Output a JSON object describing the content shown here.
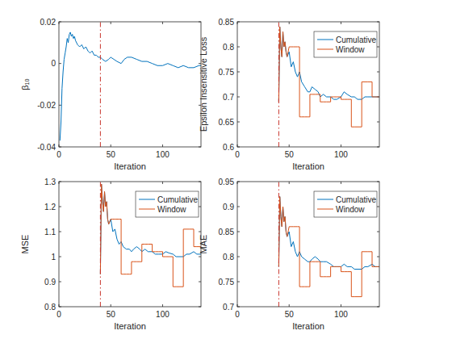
{
  "chart_data": [
    {
      "type": "line",
      "x_label": "Iteration",
      "y_label": "β₁₀",
      "x": [
        1,
        2,
        3,
        4,
        5,
        6,
        7,
        8,
        9,
        10,
        11,
        12,
        13,
        14,
        15,
        16,
        18,
        20,
        22,
        24,
        26,
        28,
        30,
        32,
        34,
        36,
        38,
        40,
        42,
        45,
        48,
        50,
        53,
        56,
        60,
        63,
        66,
        70,
        75,
        80,
        85,
        90,
        95,
        100,
        105,
        110,
        115,
        120,
        125,
        130,
        135,
        137
      ],
      "series": [
        {
          "color": "#0072bd",
          "values": [
            -0.037,
            -0.028,
            -0.012,
            -0.004,
            0.002,
            0.005,
            0.008,
            0.012,
            0.01,
            0.014,
            0.015,
            0.013,
            0.014,
            0.012,
            0.013,
            0.011,
            0.009,
            0.008,
            0.009,
            0.007,
            0.008,
            0.006,
            0.005,
            0.006,
            0.004,
            0.004,
            0.003,
            0.003,
            0.002,
            0.001,
            0.002,
            0.003,
            0.002,
            0.001,
            0.0,
            0.002,
            0.003,
            0.003,
            0.002,
            0.001,
            0.001,
            0.0,
            -0.001,
            -0.001,
            0.0,
            -0.001,
            -0.002,
            -0.001,
            -0.002,
            -0.002,
            -0.001,
            -0.001
          ]
        }
      ],
      "xlim": [
        0,
        137
      ],
      "ylim": [
        -0.04,
        0.02
      ],
      "xticks": [
        0,
        50,
        100
      ],
      "yticks": [
        -0.04,
        -0.02,
        0,
        0.02
      ],
      "xline": {
        "value": 40,
        "color": "#c8342b",
        "line_style": "dash-dot"
      }
    },
    {
      "type": "line",
      "x_label": "Iteration",
      "y_label": "Epsilon Insensitive Loss",
      "x": [
        40,
        41,
        42,
        43,
        44,
        45,
        46,
        47,
        48,
        50,
        52,
        54,
        56,
        58,
        60,
        60,
        62,
        65,
        68,
        70,
        70,
        72,
        75,
        78,
        80,
        80,
        83,
        86,
        90,
        90,
        93,
        96,
        100,
        100,
        103,
        106,
        110,
        110,
        113,
        116,
        120,
        120,
        123,
        126,
        130,
        130,
        133,
        137
      ],
      "series": [
        {
          "name": "Cumulative",
          "color": "#0072bd",
          "values": [
            0.69,
            0.84,
            0.8,
            0.78,
            0.83,
            0.8,
            0.81,
            0.79,
            0.78,
            0.79,
            0.76,
            0.77,
            0.75,
            0.74,
            0.75,
            0.75,
            0.73,
            0.72,
            0.71,
            0.71,
            0.71,
            0.72,
            0.715,
            0.71,
            0.7,
            0.7,
            0.705,
            0.7,
            0.7,
            0.7,
            0.695,
            0.695,
            0.7,
            0.7,
            0.71,
            0.705,
            0.7,
            0.7,
            0.7,
            0.695,
            0.695,
            0.695,
            0.7,
            0.7,
            0.7,
            0.7,
            0.7,
            0.7
          ]
        },
        {
          "name": "Window",
          "color": "#d95319",
          "values": [
            0.69,
            0.84,
            0.8,
            0.78,
            0.83,
            0.8,
            0.81,
            0.79,
            0.78,
            0.8,
            0.8,
            0.8,
            0.8,
            0.8,
            0.8,
            0.66,
            0.66,
            0.66,
            0.66,
            0.66,
            0.705,
            0.705,
            0.705,
            0.705,
            0.705,
            0.69,
            0.69,
            0.69,
            0.69,
            0.7,
            0.7,
            0.7,
            0.7,
            0.695,
            0.695,
            0.695,
            0.695,
            0.64,
            0.64,
            0.64,
            0.64,
            0.73,
            0.73,
            0.73,
            0.73,
            0.7,
            0.7,
            0.7
          ]
        }
      ],
      "xlim": [
        0,
        137
      ],
      "ylim": [
        0.6,
        0.85
      ],
      "xticks": [
        0,
        50,
        100
      ],
      "yticks": [
        0.6,
        0.65,
        0.7,
        0.75,
        0.8,
        0.85
      ],
      "legend": "northeast",
      "xline": {
        "value": 40,
        "color": "#c8342b",
        "line_style": "dash-dot"
      }
    },
    {
      "type": "line",
      "x_label": "Iteration",
      "y_label": "MSE",
      "x": [
        40,
        41,
        42,
        43,
        44,
        45,
        46,
        47,
        48,
        50,
        52,
        54,
        56,
        58,
        60,
        60,
        62,
        65,
        68,
        70,
        70,
        72,
        75,
        78,
        80,
        80,
        83,
        86,
        90,
        90,
        93,
        96,
        100,
        100,
        103,
        106,
        110,
        110,
        113,
        116,
        120,
        120,
        123,
        126,
        130,
        130,
        133,
        137
      ],
      "series": [
        {
          "name": "Cumulative",
          "color": "#0072bd",
          "values": [
            0.93,
            1.29,
            1.22,
            1.18,
            1.26,
            1.2,
            1.22,
            1.15,
            1.13,
            1.15,
            1.1,
            1.11,
            1.07,
            1.05,
            1.06,
            1.06,
            1.04,
            1.03,
            1.03,
            1.02,
            1.02,
            1.03,
            1.04,
            1.03,
            1.02,
            1.02,
            1.03,
            1.02,
            1.02,
            1.02,
            1.01,
            1.01,
            1.01,
            1.01,
            1.02,
            1.015,
            1.01,
            1.01,
            1.0,
            1.0,
            1.0,
            1.0,
            1.01,
            1.01,
            1.02,
            1.02,
            1.01,
            1.01
          ]
        },
        {
          "name": "Window",
          "color": "#d95319",
          "values": [
            0.93,
            1.29,
            1.22,
            1.18,
            1.26,
            1.2,
            1.22,
            1.15,
            1.13,
            1.15,
            1.15,
            1.15,
            1.15,
            1.15,
            1.15,
            0.93,
            0.93,
            0.93,
            0.93,
            0.93,
            0.98,
            0.98,
            0.98,
            0.98,
            0.98,
            1.05,
            1.05,
            1.05,
            1.05,
            1.02,
            1.02,
            1.02,
            1.02,
            1.0,
            1.0,
            1.0,
            1.0,
            0.88,
            0.88,
            0.88,
            0.88,
            1.11,
            1.11,
            1.11,
            1.11,
            1.04,
            1.04,
            1.04
          ]
        }
      ],
      "xlim": [
        0,
        137
      ],
      "ylim": [
        0.8,
        1.3
      ],
      "xticks": [
        0,
        50,
        100
      ],
      "yticks": [
        0.8,
        0.9,
        1,
        1.1,
        1.2,
        1.3
      ],
      "legend": "northeast",
      "xline": {
        "value": 40,
        "color": "#c8342b",
        "line_style": "dash-dot"
      }
    },
    {
      "type": "line",
      "x_label": "Iteration",
      "y_label": "MAE",
      "x": [
        40,
        41,
        42,
        43,
        44,
        45,
        46,
        47,
        48,
        50,
        52,
        54,
        56,
        58,
        60,
        60,
        62,
        65,
        68,
        70,
        70,
        72,
        75,
        78,
        80,
        80,
        83,
        86,
        90,
        90,
        93,
        96,
        100,
        100,
        103,
        106,
        110,
        110,
        113,
        116,
        120,
        120,
        123,
        126,
        130,
        130,
        133,
        137
      ],
      "series": [
        {
          "name": "Cumulative",
          "color": "#0072bd",
          "values": [
            0.78,
            0.92,
            0.88,
            0.86,
            0.9,
            0.87,
            0.88,
            0.85,
            0.84,
            0.85,
            0.82,
            0.83,
            0.81,
            0.8,
            0.81,
            0.81,
            0.8,
            0.795,
            0.79,
            0.79,
            0.79,
            0.795,
            0.8,
            0.795,
            0.79,
            0.79,
            0.79,
            0.79,
            0.785,
            0.785,
            0.78,
            0.78,
            0.78,
            0.78,
            0.785,
            0.78,
            0.78,
            0.78,
            0.775,
            0.775,
            0.775,
            0.775,
            0.78,
            0.78,
            0.785,
            0.785,
            0.78,
            0.78
          ]
        },
        {
          "name": "Window",
          "color": "#d95319",
          "values": [
            0.78,
            0.92,
            0.88,
            0.86,
            0.9,
            0.87,
            0.88,
            0.85,
            0.84,
            0.86,
            0.86,
            0.86,
            0.86,
            0.86,
            0.86,
            0.74,
            0.74,
            0.74,
            0.74,
            0.74,
            0.79,
            0.79,
            0.79,
            0.79,
            0.79,
            0.76,
            0.76,
            0.76,
            0.76,
            0.78,
            0.78,
            0.78,
            0.78,
            0.77,
            0.77,
            0.77,
            0.77,
            0.72,
            0.72,
            0.72,
            0.72,
            0.81,
            0.81,
            0.81,
            0.81,
            0.78,
            0.78,
            0.78
          ]
        }
      ],
      "xlim": [
        0,
        137
      ],
      "ylim": [
        0.7,
        0.95
      ],
      "xticks": [
        0,
        50,
        100
      ],
      "yticks": [
        0.7,
        0.75,
        0.8,
        0.85,
        0.9,
        0.95
      ],
      "legend": "northeast",
      "xline": {
        "value": 40,
        "color": "#c8342b",
        "line_style": "dash-dot"
      }
    }
  ]
}
